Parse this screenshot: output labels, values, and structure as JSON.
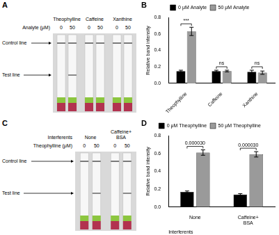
{
  "strip_panels": [
    {
      "panel": "A",
      "concentration_label": "Analyte (μM)",
      "line_labels": {
        "control": "Control line",
        "test": "Test line"
      },
      "groups": [
        {
          "label": "Theophylline",
          "strips": [
            {
              "label": "0",
              "test_line": false
            },
            {
              "label": "50",
              "test_line": true
            }
          ]
        },
        {
          "label": "Caffeine",
          "strips": [
            {
              "label": "0",
              "test_line": false
            },
            {
              "label": "50",
              "test_line": false
            }
          ]
        },
        {
          "label": "Xanthine",
          "strips": [
            {
              "label": "0",
              "test_line": false
            },
            {
              "label": "50",
              "test_line": false
            }
          ]
        }
      ]
    },
    {
      "panel": "C",
      "group_label": "Interferents",
      "concentration_label": "Theophylline (μM)",
      "line_labels": {
        "control": "Control line",
        "test": "Test line"
      },
      "groups": [
        {
          "label": "None",
          "strips": [
            {
              "label": "0",
              "test_line": false
            },
            {
              "label": "50",
              "test_line": true
            }
          ]
        },
        {
          "label": "Caffeine+ BSA",
          "strips": [
            {
              "label": "0",
              "test_line": false
            },
            {
              "label": "50",
              "test_line": true
            }
          ]
        }
      ]
    }
  ],
  "chart_data": [
    {
      "panel": "B",
      "type": "bar",
      "categories": [
        "Theophylline",
        "Caffeine",
        "Xanthine"
      ],
      "series": [
        {
          "name": "0 μM Analyte",
          "color": "#000000",
          "values": [
            0.15,
            0.15,
            0.14
          ],
          "errors": [
            0.01,
            0.01,
            0.02
          ]
        },
        {
          "name": "50 μM Analyte",
          "color": "#9a9a9a",
          "values": [
            0.63,
            0.15,
            0.13
          ],
          "errors": [
            0.05,
            0.01,
            0.02
          ]
        }
      ],
      "y_label": "Relative band intensity",
      "ylim": [
        0,
        0.8
      ],
      "yticks": [
        {
          "value": 0,
          "label": "0.0"
        },
        0.2,
        0.4,
        0.6,
        0.8
      ],
      "grid": false,
      "legend": "top",
      "annotations": [
        {
          "category": "Theophylline",
          "text": "***"
        },
        {
          "category": "Caffeine",
          "text": "ns"
        },
        {
          "category": "Xanthine",
          "text": "ns"
        }
      ]
    },
    {
      "panel": "D",
      "type": "bar",
      "categories": [
        "None",
        "Caffeine+ BSA"
      ],
      "x_label": "Interferents",
      "series": [
        {
          "name": "0 μM Theophylline",
          "color": "#000000",
          "values": [
            0.17,
            0.14
          ],
          "errors": [
            0.01,
            0.01
          ]
        },
        {
          "name": "50 μM Theophylline",
          "color": "#9a9a9a",
          "values": [
            0.61,
            0.59
          ],
          "errors": [
            0.03,
            0.03
          ]
        }
      ],
      "y_label": "Relative band intensity",
      "ylim": [
        0,
        0.8
      ],
      "yticks": [
        {
          "value": 0,
          "label": "0.0"
        },
        0.2,
        0.4,
        0.6,
        0.8
      ],
      "grid": false,
      "legend": "top",
      "annotations": [
        {
          "category": "None",
          "text": "0.000030"
        },
        {
          "category": "Caffeine+ BSA",
          "text": "0.000030"
        }
      ]
    }
  ]
}
